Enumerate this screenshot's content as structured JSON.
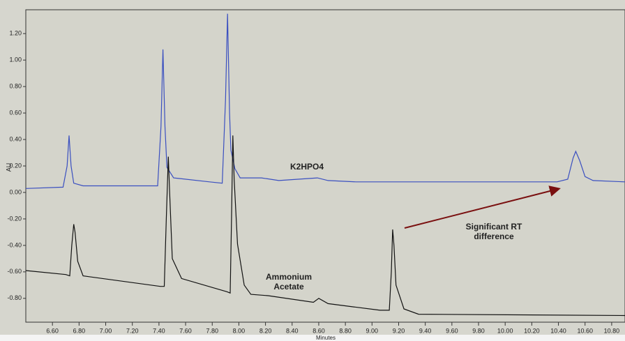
{
  "chart_data": {
    "type": "line",
    "x_label": "Minutes",
    "y_label": "AU",
    "xlim": [
      6.4,
      10.9
    ],
    "ylim": [
      -0.98,
      1.38
    ],
    "xticks": [
      {
        "value": 6.6,
        "label": "6.60"
      },
      {
        "value": 6.8,
        "label": "6.80"
      },
      {
        "value": 7.0,
        "label": "7.00"
      },
      {
        "value": 7.2,
        "label": "7.20"
      },
      {
        "value": 7.4,
        "label": "7.40"
      },
      {
        "value": 7.6,
        "label": "7.60"
      },
      {
        "value": 7.8,
        "label": "7.80"
      },
      {
        "value": 8.0,
        "label": "8.00"
      },
      {
        "value": 8.2,
        "label": "8.20"
      },
      {
        "value": 8.4,
        "label": "8.40"
      },
      {
        "value": 8.6,
        "label": "8.60"
      },
      {
        "value": 8.8,
        "label": "8.80"
      },
      {
        "value": 9.0,
        "label": "9.00"
      },
      {
        "value": 9.2,
        "label": "9.20"
      },
      {
        "value": 9.4,
        "label": "9.40"
      },
      {
        "value": 9.6,
        "label": "9.60"
      },
      {
        "value": 9.8,
        "label": "9.80"
      },
      {
        "value": 10.0,
        "label": "10.00"
      },
      {
        "value": 10.2,
        "label": "10.20"
      },
      {
        "value": 10.4,
        "label": "10.40"
      },
      {
        "value": 10.6,
        "label": "10.60"
      },
      {
        "value": 10.8,
        "label": "10.80"
      }
    ],
    "yticks": [
      {
        "value": -0.8,
        "label": "-0.80"
      },
      {
        "value": -0.6,
        "label": "-0.60"
      },
      {
        "value": -0.4,
        "label": "-0.40"
      },
      {
        "value": -0.2,
        "label": "-0.20"
      },
      {
        "value": 0,
        "label": "0.00"
      },
      {
        "value": 0.2,
        "label": "0.20"
      },
      {
        "value": 0.4,
        "label": "0.40"
      },
      {
        "value": 0.6,
        "label": "0.60"
      },
      {
        "value": 0.8,
        "label": "0.80"
      },
      {
        "value": 1.0,
        "label": "1.00"
      },
      {
        "value": 1.2,
        "label": "1.20"
      }
    ],
    "series": [
      {
        "color": "#3a4fc0",
        "x": [
          6.4,
          6.68,
          6.71,
          6.725,
          6.74,
          6.76,
          6.83,
          7.39,
          7.415,
          7.43,
          7.445,
          7.46,
          7.51,
          7.78,
          7.875,
          7.9,
          7.915,
          7.93,
          7.94,
          7.97,
          8.01,
          8.17,
          8.3,
          8.59,
          8.67,
          8.88,
          10.39,
          10.47,
          10.51,
          10.53,
          10.56,
          10.6,
          10.66,
          10.9
        ],
        "values": [
          0.03,
          0.04,
          0.2,
          0.43,
          0.2,
          0.07,
          0.05,
          0.05,
          0.5,
          1.08,
          0.5,
          0.19,
          0.11,
          0.08,
          0.07,
          0.7,
          1.35,
          0.6,
          0.32,
          0.18,
          0.11,
          0.11,
          0.09,
          0.11,
          0.09,
          0.08,
          0.08,
          0.1,
          0.26,
          0.31,
          0.24,
          0.12,
          0.09,
          0.08
        ]
      },
      {
        "color": "#111111",
        "x": [
          6.4,
          6.7,
          6.73,
          6.745,
          6.76,
          6.77,
          6.79,
          6.83,
          7.41,
          7.44,
          7.455,
          7.47,
          7.48,
          7.5,
          7.57,
          7.91,
          7.935,
          7.945,
          7.955,
          7.965,
          7.99,
          8.04,
          8.09,
          8.22,
          8.56,
          8.6,
          8.67,
          9.06,
          9.13,
          9.145,
          9.155,
          9.165,
          9.18,
          9.24,
          9.35,
          10.9
        ],
        "values": [
          -0.59,
          -0.62,
          -0.63,
          -0.4,
          -0.24,
          -0.3,
          -0.52,
          -0.63,
          -0.71,
          -0.71,
          -0.2,
          0.27,
          0.0,
          -0.5,
          -0.65,
          -0.75,
          -0.76,
          -0.2,
          0.43,
          0.1,
          -0.39,
          -0.7,
          -0.77,
          -0.78,
          -0.83,
          -0.8,
          -0.84,
          -0.89,
          -0.89,
          -0.6,
          -0.28,
          -0.4,
          -0.7,
          -0.88,
          -0.92,
          -0.93
        ]
      }
    ],
    "annotations": [
      {
        "lines": [
          "K2HPO4"
        ],
        "color": "#3a4fc0"
      },
      {
        "lines": [
          "Ammonium",
          "Acetate"
        ],
        "color": "#111111"
      },
      {
        "lines": [
          "Significant RT",
          "difference"
        ],
        "color": "#8b1a1a"
      }
    ]
  }
}
